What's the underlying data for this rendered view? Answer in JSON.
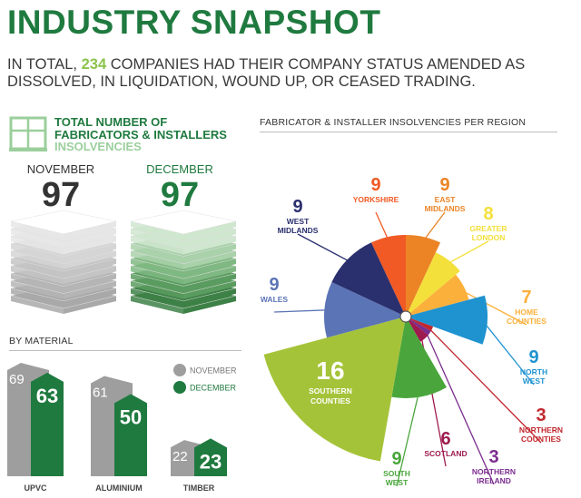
{
  "title": "INDUSTRY SNAPSHOT",
  "intro": {
    "before": "IN TOTAL, ",
    "highlight": "234",
    "after": " COMPANIES HAD THEIR COMPANY STATUS AMENDED AS DISSOLVED, IN LIQUIDATION, WOUND UP, OR CEASED TRADING."
  },
  "total": {
    "heading_line1": "TOTAL NUMBER OF",
    "heading_line2": "FABRICATORS & INSTALLERS",
    "heading_line3": "INSOLVENCIES",
    "months": [
      {
        "label": "NOVEMBER",
        "value": "97"
      },
      {
        "label": "DECEMBER",
        "value": "97"
      }
    ]
  },
  "colors": {
    "green": "#1f7a3f",
    "light_green": "#8bc34a",
    "grey": "#9e9e9e",
    "dark_text": "#333333"
  },
  "chart_data": [
    {
      "type": "bar",
      "title": "BY MATERIAL",
      "categories": [
        "UPVC",
        "ALUMINIUM",
        "TIMBER"
      ],
      "series": [
        {
          "name": "NOVEMBER",
          "color": "#9e9e9e",
          "values": [
            69,
            61,
            22
          ]
        },
        {
          "name": "DECEMBER",
          "color": "#1f7a3f",
          "values": [
            63,
            50,
            23
          ]
        }
      ],
      "legend_position": "top-right"
    },
    {
      "type": "pie",
      "title": "FABRICATOR & INSTALLER INSOLVENCIES PER REGION",
      "slices": [
        {
          "line1": "YORKSHIRE",
          "line2": "",
          "value": 9,
          "color": "#f15a24"
        },
        {
          "line1": "EAST",
          "line2": "MIDLANDS",
          "value": 9,
          "color": "#ec8426"
        },
        {
          "line1": "GREATER",
          "line2": "LONDON",
          "value": 8,
          "color": "#f3e03b"
        },
        {
          "line1": "HOME",
          "line2": "COUNTIES",
          "value": 7,
          "color": "#fbb03b"
        },
        {
          "line1": "NORTH",
          "line2": "WEST",
          "value": 9,
          "color": "#1f93d0"
        },
        {
          "line1": "NORTHERN",
          "line2": "COUNTIES",
          "value": 3,
          "color": "#c1272d"
        },
        {
          "line1": "NORTHERN",
          "line2": "IRELAND",
          "value": 3,
          "color": "#7b2d8e"
        },
        {
          "line1": "SCOTLAND",
          "line2": "",
          "value": 6,
          "color": "#9e1b4e"
        },
        {
          "line1": "SOUTH",
          "line2": "WEST",
          "value": 9,
          "color": "#4aa63c"
        },
        {
          "line1": "SOUTHERN",
          "line2": "COUNTIES",
          "value": 16,
          "color": "#a5c339"
        },
        {
          "line1": "WALES",
          "line2": "",
          "value": 9,
          "color": "#5b74b6"
        },
        {
          "line1": "WEST",
          "line2": "MIDLANDS",
          "value": 9,
          "color": "#2a2f6e"
        }
      ]
    }
  ]
}
